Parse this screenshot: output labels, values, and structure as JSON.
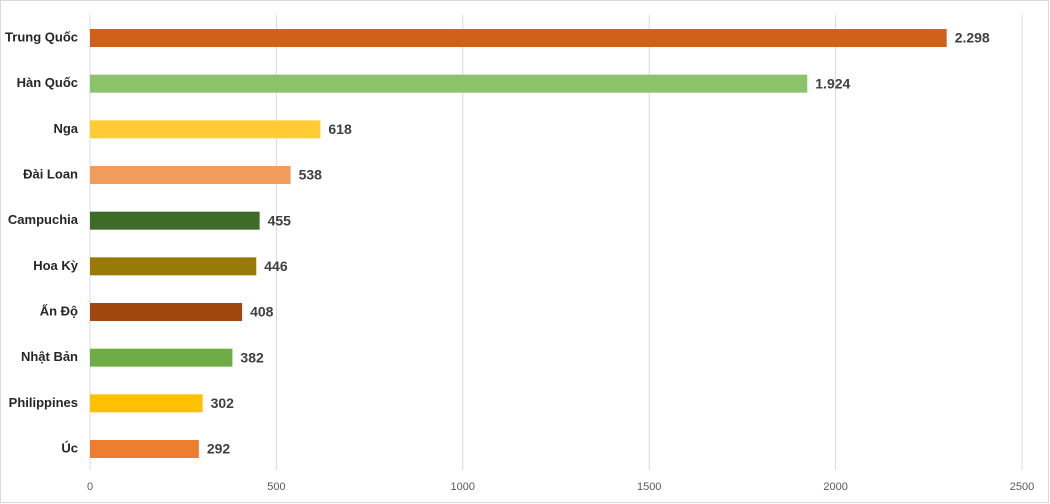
{
  "chart_data": {
    "type": "bar",
    "orientation": "horizontal",
    "categories": [
      "Trung Quốc",
      "Hàn Quốc",
      "Nga",
      "Đài Loan",
      "Campuchia",
      "Hoa Kỳ",
      "Ấn Độ",
      "Nhật Bản",
      "Philippines",
      "Úc"
    ],
    "values": [
      2298,
      1924,
      618,
      538,
      455,
      446,
      408,
      382,
      302,
      292
    ],
    "value_labels": [
      "2.298",
      "1.924",
      "618",
      "538",
      "455",
      "446",
      "408",
      "382",
      "302",
      "292"
    ],
    "colors": [
      "#d0611a",
      "#8cc26a",
      "#ffcc33",
      "#f19b5c",
      "#3f6b2a",
      "#9a7a06",
      "#9e480e",
      "#6fac47",
      "#ffc000",
      "#ed7d31"
    ],
    "xlim": [
      0,
      2500
    ],
    "xticks": [
      0,
      500,
      1000,
      1500,
      2000,
      2500
    ],
    "grid": true
  }
}
